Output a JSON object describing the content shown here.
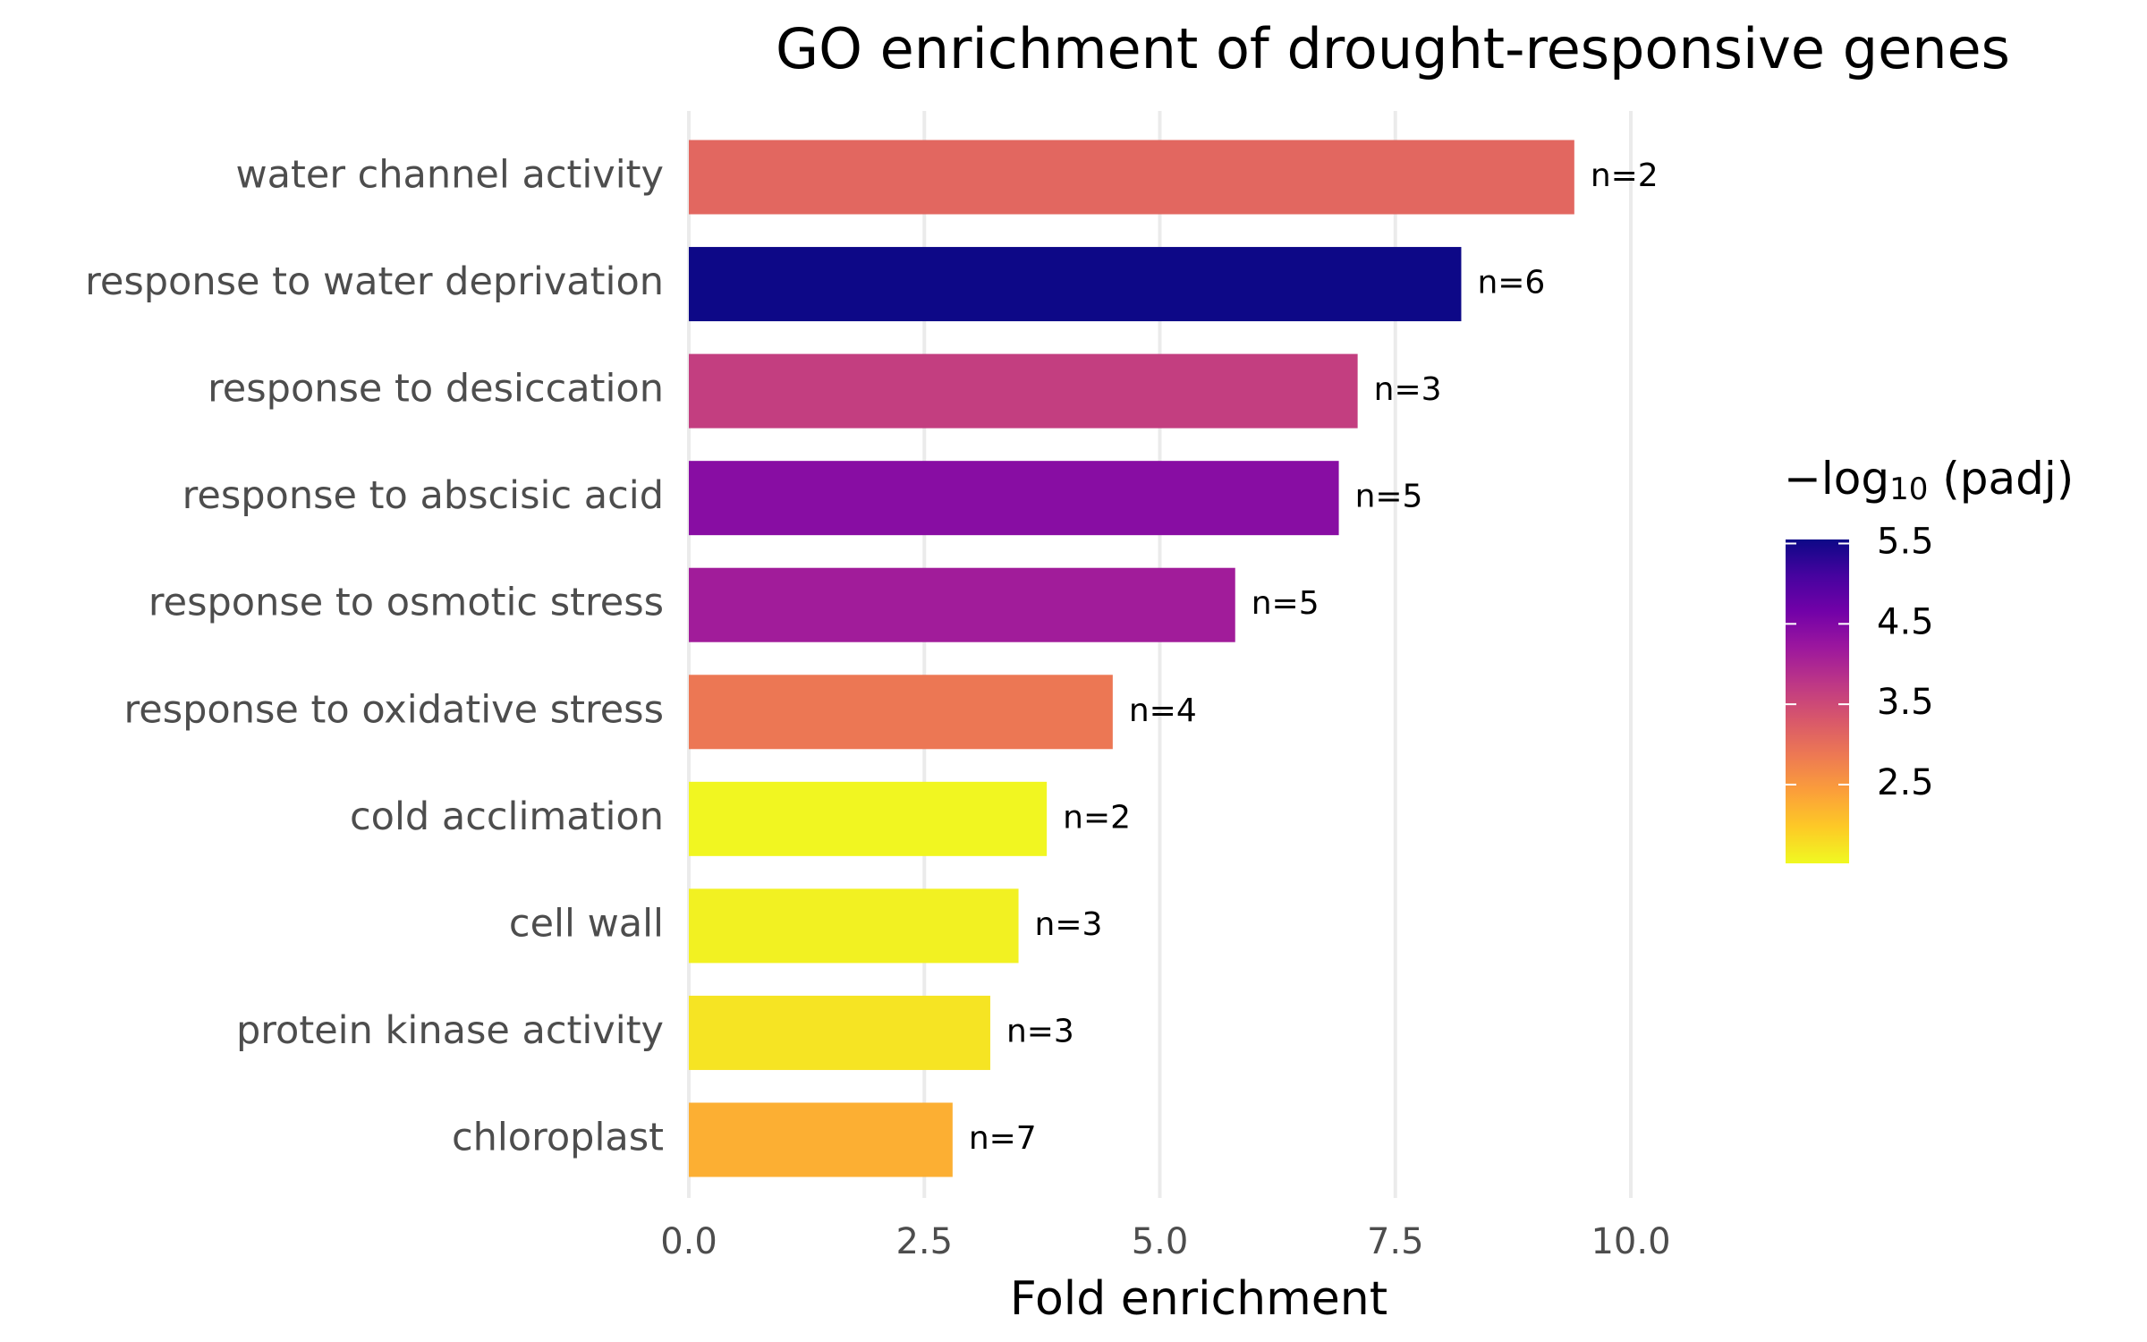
{
  "chart_data": {
    "type": "bar",
    "orientation": "horizontal",
    "title": "GO enrichment of drought-responsive genes",
    "x_label": "Fold enrichment",
    "categories": [
      "water channel activity",
      "response to water deprivation",
      "response to desiccation",
      "response to abscisic acid",
      "response to osmotic stress",
      "response to oxidative stress",
      "cold acclimation",
      "cell wall",
      "protein kinase activity",
      "chloroplast"
    ],
    "values": [
      9.4,
      8.2,
      7.1,
      6.9,
      5.8,
      4.5,
      3.8,
      3.5,
      3.2,
      2.8
    ],
    "labels": [
      "n=2",
      "n=6",
      "n=3",
      "n=5",
      "n=5",
      "n=4",
      "n=2",
      "n=3",
      "n=3",
      "n=7"
    ],
    "color_values": [
      3.1,
      5.55,
      3.66,
      4.42,
      4.14,
      2.89,
      1.55,
      1.6,
      1.72,
      2.25
    ],
    "xlim": [
      0,
      10.3
    ],
    "xticks": [
      {
        "value": 0,
        "label": "0.0"
      },
      2.5,
      {
        "value": 5,
        "label": "5.0"
      },
      7.5,
      {
        "value": 10,
        "label": "10.0"
      }
    ],
    "grid": true,
    "colorbar": {
      "title": [
        "−log",
        "10",
        " (padj)"
      ],
      "clim": [
        1.52,
        5.55
      ],
      "ticks": [
        2.5,
        3.5,
        4.5,
        5.5
      ],
      "colormap": [
        "#0d0887",
        "#46039f",
        "#7201a8",
        "#9c179e",
        "#bd3786",
        "#d8576b",
        "#ed7953",
        "#fb9f3a",
        "#fdca26",
        "#f0f921"
      ]
    }
  }
}
